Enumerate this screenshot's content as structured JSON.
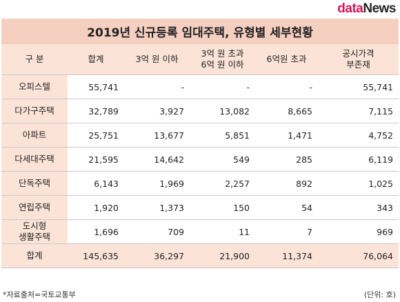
{
  "logo": {
    "part1": "data",
    "part2": "News"
  },
  "title": "2019년 신규등록 임대주택, 유형별 세부현황",
  "headers": [
    "구 분",
    "합계",
    "3억 원 이하",
    "3억 원 초과\n6억 원 이하",
    "6억원 초과",
    "공시가격\n부존재"
  ],
  "rows": [
    {
      "label": "오피스텔",
      "values": [
        "55,741",
        "-",
        "-",
        "-",
        "55,741"
      ]
    },
    {
      "label": "다가구주택",
      "values": [
        "32,789",
        "3,927",
        "13,082",
        "8,665",
        "7,115"
      ]
    },
    {
      "label": "아파트",
      "values": [
        "25,751",
        "13,677",
        "5,851",
        "1,471",
        "4,752"
      ]
    },
    {
      "label": "다세대주택",
      "values": [
        "21,595",
        "14,642",
        "549",
        "285",
        "6,119"
      ]
    },
    {
      "label": "단독주택",
      "values": [
        "6,143",
        "1,969",
        "2,257",
        "892",
        "1,025"
      ]
    },
    {
      "label": "연립주택",
      "values": [
        "1,920",
        "1,373",
        "150",
        "54",
        "343"
      ]
    },
    {
      "label": "도시형\n생활주택",
      "values": [
        "1,696",
        "709",
        "11",
        "7",
        "969"
      ]
    }
  ],
  "total": {
    "label": "합계",
    "values": [
      "145,635",
      "36,297",
      "21,900",
      "11,374",
      "76,064"
    ]
  },
  "source": "*자료출처=국토교통부",
  "unit": "(단위: 호)"
}
